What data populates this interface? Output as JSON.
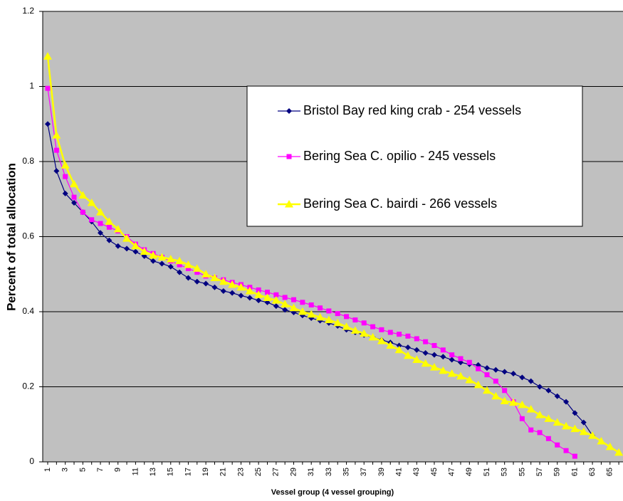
{
  "chart_data": {
    "type": "line",
    "x_label": "Vessel group (4 vessel grouping)",
    "y_label": "Percent of total allocation",
    "categories": [
      1,
      null,
      3,
      null,
      5,
      null,
      7,
      null,
      9,
      null,
      11,
      null,
      13,
      null,
      15,
      null,
      17,
      null,
      19,
      null,
      21,
      null,
      23,
      null,
      25,
      null,
      27,
      null,
      29,
      null,
      31,
      null,
      33,
      null,
      35,
      null,
      37,
      null,
      39,
      null,
      41,
      null,
      43,
      null,
      45,
      null,
      47,
      null,
      49,
      null,
      51,
      null,
      53,
      null,
      55,
      null,
      57,
      null,
      59,
      null,
      61,
      null,
      63,
      null,
      65,
      null
    ],
    "ylim": [
      0,
      1.2
    ],
    "yticks": [
      0,
      0.2,
      0.4,
      0.6,
      0.8,
      1,
      1.2
    ],
    "grid": true,
    "background": "#c0c0c0",
    "series": [
      {
        "name": "Bristol Bay red king crab - 254 vessels",
        "color": "#000080",
        "marker": "diamond",
        "values": [
          0.9,
          0.775,
          0.715,
          0.69,
          0.665,
          0.64,
          0.61,
          0.59,
          0.575,
          0.568,
          0.56,
          0.548,
          0.535,
          0.528,
          0.52,
          0.505,
          0.49,
          0.48,
          0.475,
          0.465,
          0.455,
          0.45,
          0.443,
          0.437,
          0.43,
          0.425,
          0.415,
          0.405,
          0.398,
          0.39,
          0.383,
          0.376,
          0.37,
          0.362,
          0.352,
          0.345,
          0.338,
          0.332,
          0.325,
          0.318,
          0.31,
          0.305,
          0.298,
          0.29,
          0.285,
          0.28,
          0.272,
          0.265,
          0.26,
          0.258,
          0.25,
          0.245,
          0.24,
          0.235,
          0.225,
          0.215,
          0.2,
          0.19,
          0.175,
          0.16,
          0.13,
          0.105,
          0.07,
          null,
          null,
          null
        ]
      },
      {
        "name": "Bering Sea C. opilio - 245 vessels",
        "color": "#ff00ff",
        "marker": "square",
        "values": [
          0.995,
          0.83,
          0.76,
          0.705,
          0.665,
          0.645,
          0.635,
          0.625,
          0.615,
          0.6,
          0.58,
          0.565,
          0.555,
          0.545,
          0.535,
          0.525,
          0.515,
          0.505,
          0.495,
          0.49,
          0.485,
          0.478,
          0.472,
          0.465,
          0.458,
          0.452,
          0.445,
          0.438,
          0.432,
          0.425,
          0.418,
          0.41,
          0.402,
          0.395,
          0.387,
          0.378,
          0.37,
          0.36,
          0.352,
          0.345,
          0.34,
          0.335,
          0.328,
          0.32,
          0.31,
          0.298,
          0.285,
          0.275,
          0.265,
          0.248,
          0.232,
          0.215,
          0.19,
          0.16,
          0.115,
          0.085,
          0.078,
          0.062,
          0.045,
          0.03,
          0.015,
          null,
          null,
          null,
          null,
          null
        ]
      },
      {
        "name": "Bering Sea C. bairdi - 266 vessels",
        "color": "#ffff00",
        "marker": "triangle",
        "values": [
          1.08,
          0.87,
          0.79,
          0.74,
          0.71,
          0.69,
          0.665,
          0.64,
          0.62,
          0.595,
          0.575,
          0.56,
          0.55,
          0.545,
          0.54,
          0.535,
          0.525,
          0.515,
          0.5,
          0.49,
          0.48,
          0.472,
          0.465,
          0.455,
          0.445,
          0.437,
          0.43,
          0.42,
          0.41,
          0.4,
          0.393,
          0.385,
          0.378,
          0.37,
          0.36,
          0.35,
          0.342,
          0.332,
          0.322,
          0.31,
          0.298,
          0.283,
          0.272,
          0.262,
          0.252,
          0.243,
          0.235,
          0.228,
          0.218,
          0.205,
          0.19,
          0.175,
          0.162,
          0.158,
          0.152,
          0.14,
          0.125,
          0.115,
          0.105,
          0.095,
          0.088,
          0.08,
          0.07,
          0.055,
          0.04,
          0.025
        ]
      }
    ]
  }
}
